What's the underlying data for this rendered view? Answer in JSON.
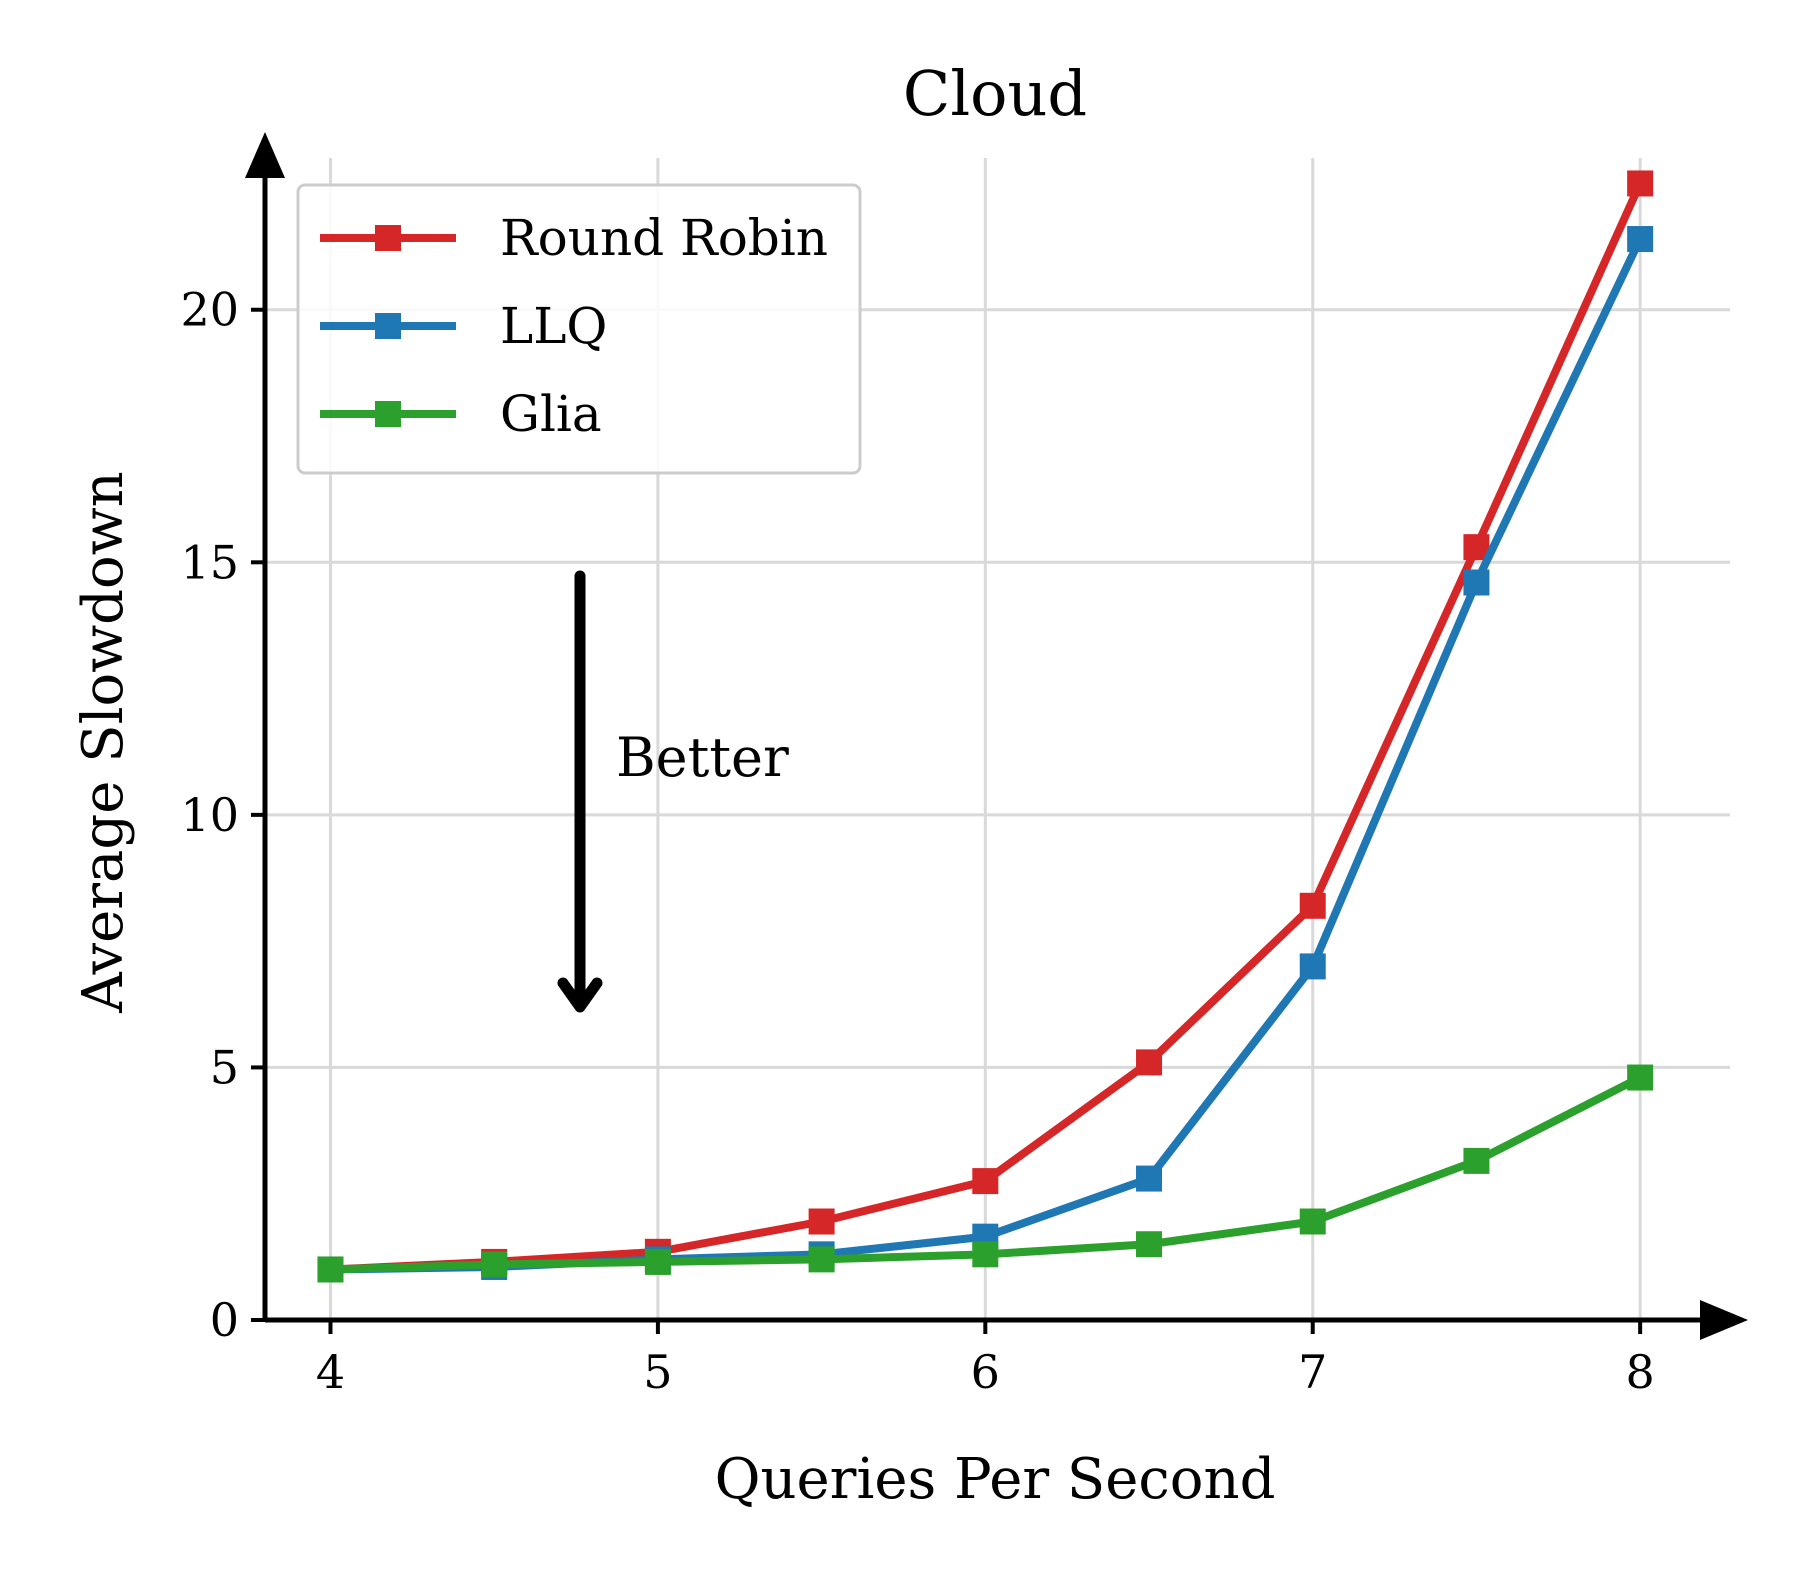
{
  "chart_data": {
    "type": "line",
    "title": "Cloud",
    "xlabel": "Queries Per Second",
    "ylabel": "Average Slowdown",
    "x": [
      4,
      4.5,
      5,
      5.5,
      6,
      6.5,
      7,
      7.5,
      8
    ],
    "xticks": [
      "4",
      "5",
      "6",
      "7",
      "8"
    ],
    "yticks": [
      "0",
      "5",
      "10",
      "15",
      "20"
    ],
    "xlim": [
      3.8,
      8.25
    ],
    "ylim": [
      0,
      23.4
    ],
    "grid": true,
    "legend_position": "top-left",
    "annotation": {
      "text": "Better",
      "arrow": "down"
    },
    "series": [
      {
        "name": "Round Robin",
        "color": "#d62728",
        "marker": "square",
        "values": [
          1.0,
          1.15,
          1.35,
          1.95,
          2.75,
          5.1,
          8.2,
          15.3,
          22.5
        ]
      },
      {
        "name": "LLQ",
        "color": "#1f77b4",
        "marker": "square",
        "values": [
          1.0,
          1.05,
          1.2,
          1.3,
          1.65,
          2.8,
          7.0,
          14.6,
          21.4
        ]
      },
      {
        "name": "Glia",
        "color": "#2ca02c",
        "marker": "square",
        "values": [
          1.0,
          1.1,
          1.15,
          1.2,
          1.3,
          1.5,
          1.95,
          3.15,
          4.8
        ]
      }
    ]
  }
}
